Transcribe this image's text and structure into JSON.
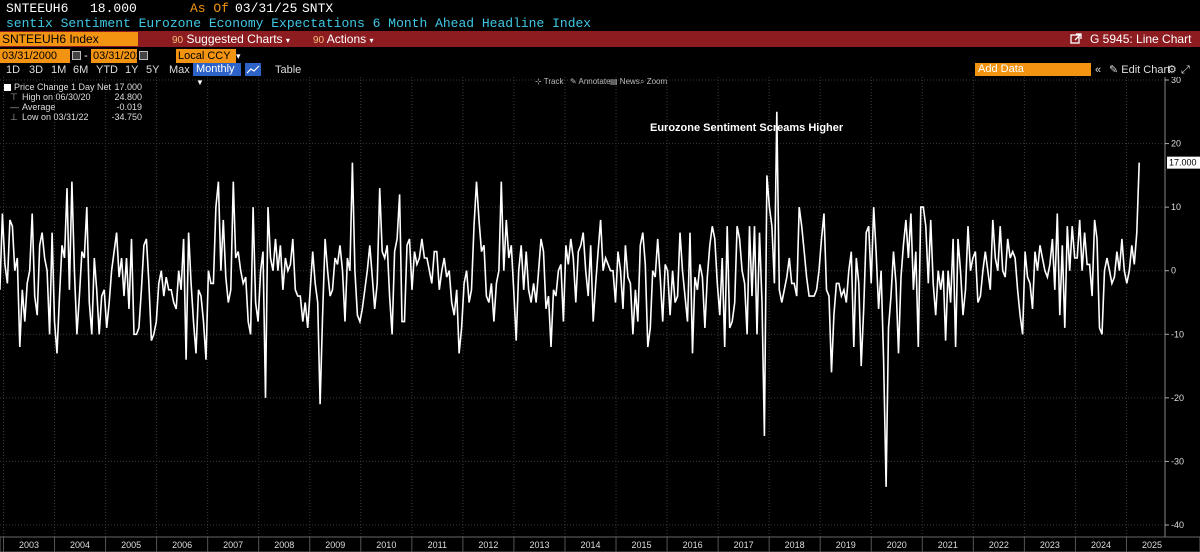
{
  "header": {
    "ticker": "SNTEEUH6",
    "last_value": "18.000",
    "as_of_label": "As Of",
    "as_of_date": "03/31/25",
    "source": "SNTX",
    "description": "sentix Sentiment Eurozone Economy Expectations 6 Month Ahead Headline Index"
  },
  "toolbar": {
    "security": "SNTEEUH6 Index",
    "suggested_num": "90",
    "suggested_label": "Suggested Charts",
    "actions_num": "90",
    "actions_label": "Actions",
    "chart_name": "G 5945: Line Chart"
  },
  "range": {
    "start": "03/31/2000",
    "end": "03/31/2025",
    "currency": "Local CCY"
  },
  "periods": [
    "1D",
    "3D",
    "1M",
    "6M",
    "YTD",
    "1Y",
    "5Y",
    "Max"
  ],
  "frequency": "Monthly",
  "table_label": "Table",
  "add_data_placeholder": "Add Data",
  "edit_chart_label": "Edit Chart",
  "tools": {
    "track": "Track",
    "annotate": "Annotate",
    "news": "News",
    "zoom": "Zoom"
  },
  "legend": {
    "series": "Price Change 1 Day Net",
    "series_value": "17.000",
    "high_label": "High on 06/30/20",
    "high_value": "24.800",
    "avg_label": "Average",
    "avg_value": "-0.019",
    "low_label": "Low on 03/31/22",
    "low_value": "-34.750"
  },
  "annotation": "Eurozone Sentiment Screams Higher",
  "colors": {
    "accent": "#f29412",
    "toolbar": "#8c1c20",
    "line": "#ffffff",
    "description": "#3fc8e6",
    "selected": "#2d63c8"
  },
  "chart_data": {
    "type": "line",
    "title": "Eurozone Sentiment Screams Higher",
    "series_name": "Price Change 1 Day Net",
    "frequency": "monthly",
    "x_start": "2002-04",
    "last_value_label": "17.000",
    "ylim": [
      -40,
      30
    ],
    "y_ticks": [
      30,
      20,
      10,
      0,
      -10,
      -20,
      -30,
      -40
    ],
    "x_ticks": [
      "2003",
      "2004",
      "2005",
      "2006",
      "2007",
      "2008",
      "2009",
      "2010",
      "2011",
      "2012",
      "2013",
      "2014",
      "2015",
      "2016",
      "2017",
      "2018",
      "2019",
      "2020",
      "2021",
      "2022",
      "2023",
      "2024",
      "2025"
    ],
    "grid": true,
    "values": [
      -19,
      0,
      -13,
      0,
      5,
      7,
      0,
      2,
      -9,
      0,
      10,
      2,
      10,
      3,
      -3,
      9,
      1,
      -2,
      8,
      7,
      0,
      2,
      -12,
      -3,
      -8,
      -2,
      0,
      9,
      -4,
      -7,
      4,
      6,
      2,
      0,
      -10,
      6,
      -8,
      -13,
      -4,
      4,
      2,
      13,
      -3,
      14,
      0,
      -10,
      -4,
      3,
      2,
      10,
      -5,
      -10,
      2,
      -3,
      -10,
      -4,
      -3,
      -9,
      -5,
      0,
      3,
      6,
      -1,
      2,
      -4,
      2,
      -6,
      5,
      -10,
      -10,
      -9,
      -3,
      4,
      5,
      -2,
      -11,
      -10,
      -8,
      -2,
      0,
      -4,
      -1,
      -3,
      -3,
      -5,
      -6,
      0,
      -3,
      5,
      -14,
      6,
      -2,
      -8,
      -13,
      -3,
      -4,
      -8,
      -14,
      0,
      -2,
      -2,
      10,
      14,
      0,
      8,
      -1,
      -5,
      -3,
      14,
      2,
      3,
      0,
      -2,
      -1,
      -8,
      -10,
      10,
      -5,
      -8,
      0,
      3,
      -20,
      10,
      2,
      0,
      5,
      0,
      4,
      -3,
      2,
      0,
      1,
      5,
      -3,
      -4,
      -4,
      -8,
      -5,
      -9,
      -3,
      3,
      -2,
      -5,
      -21,
      -7,
      5,
      0,
      -4,
      -3,
      2,
      1,
      4,
      0,
      -8,
      2,
      0,
      17,
      0,
      -7,
      -8,
      -6,
      -3,
      0,
      4,
      -1,
      -6,
      -2,
      13,
      3,
      2,
      4,
      -4,
      -10,
      3,
      5,
      12,
      -8,
      -8,
      4,
      5,
      -3,
      3,
      1,
      2,
      5,
      2,
      2,
      0,
      -2,
      3,
      3,
      -3,
      0,
      2,
      -1,
      0,
      -5,
      -7,
      -3,
      -13,
      -9,
      -2,
      0,
      -5,
      -3,
      7,
      14,
      8,
      3,
      4,
      -4,
      -5,
      -2,
      -8,
      -2,
      0,
      14,
      0,
      8,
      2,
      4,
      -3,
      -11,
      0,
      4,
      -3,
      3,
      -3,
      -5,
      -2,
      -5,
      0,
      5,
      3,
      -6,
      -4,
      -12,
      -3,
      -4,
      0,
      1,
      -8,
      4,
      1,
      5,
      2,
      -5,
      3,
      4,
      6,
      0,
      -4,
      4,
      -8,
      -2,
      3,
      8,
      0,
      2,
      1,
      0,
      0,
      -5,
      3,
      0,
      -6,
      4,
      -1,
      -2,
      -10,
      -3,
      -8,
      4,
      6,
      1,
      -12,
      -9,
      0,
      -1,
      5,
      -1,
      -8,
      1,
      0,
      -7,
      0,
      -5,
      -4,
      6,
      0,
      -4,
      -8,
      6,
      -13,
      -1,
      -3,
      1,
      -1,
      -9,
      -1,
      4,
      7,
      5,
      -2,
      -7,
      2,
      -12,
      7,
      -9,
      -8,
      -5,
      7,
      5,
      0,
      -2,
      -10,
      7,
      -4,
      7,
      -10,
      6,
      -5,
      -26,
      15,
      10,
      7,
      -2,
      25,
      -3,
      -5,
      -3,
      -1,
      2,
      -2,
      -2,
      -4,
      10,
      7,
      3,
      -1,
      -4,
      -4,
      -4,
      -3,
      0,
      5,
      9,
      -3,
      -4,
      -16,
      -7,
      -2,
      -2,
      -4,
      -3,
      -5,
      0,
      3,
      -12,
      2,
      -2,
      -15,
      -6,
      6,
      7,
      -2,
      10,
      3,
      -6,
      0,
      -14,
      -34,
      -9,
      -4,
      3,
      -2,
      -13,
      -1,
      4,
      8,
      2,
      9,
      -3,
      3,
      -12,
      10,
      10,
      7,
      -2,
      8,
      -2,
      -7,
      0,
      -3,
      0,
      -11,
      0,
      -5,
      5,
      -12,
      5,
      0,
      -7,
      -3,
      7,
      0,
      2,
      3,
      -5,
      -4,
      0,
      3,
      0,
      -3,
      8,
      2,
      0,
      7,
      0,
      -1,
      5,
      2,
      3,
      2,
      -3,
      -7,
      -10,
      3,
      -1,
      -2,
      -6,
      3,
      0,
      4,
      2,
      0,
      -1,
      1,
      5,
      -3,
      9,
      -7,
      4,
      -9,
      7,
      0,
      7,
      2,
      2,
      8,
      0,
      6,
      1,
      1,
      -4,
      8,
      5,
      -9,
      -10,
      0,
      2,
      0,
      -2,
      -1,
      3,
      0,
      5,
      0,
      -2,
      0,
      4,
      1,
      6,
      17
    ]
  }
}
